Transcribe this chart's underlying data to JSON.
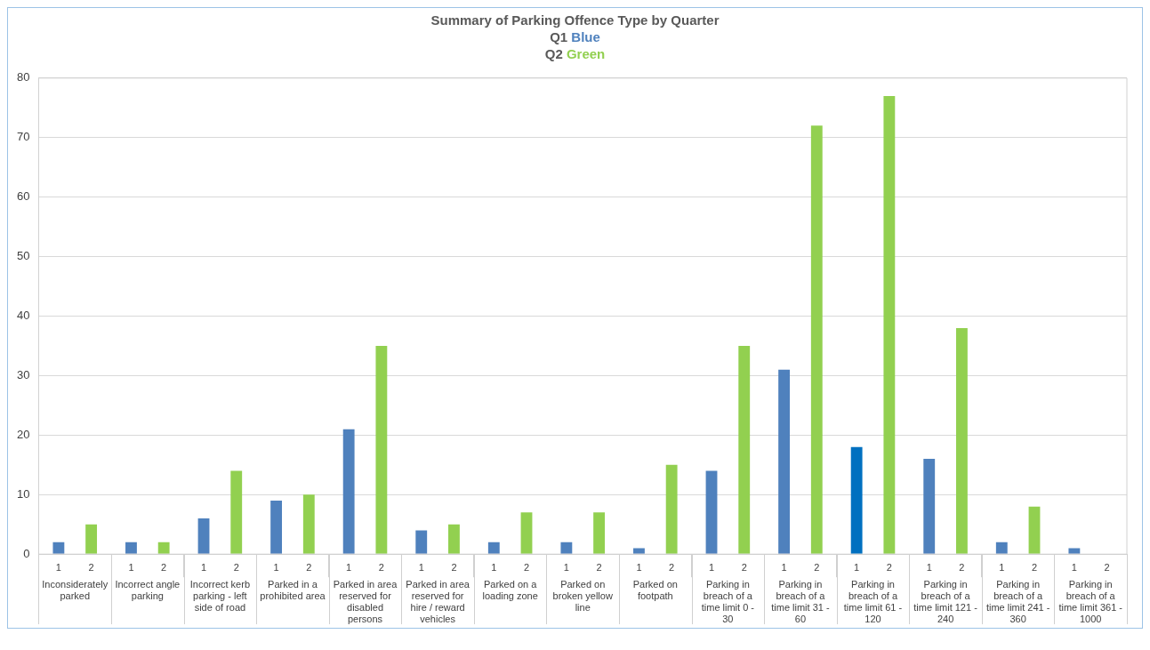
{
  "chart_data": {
    "type": "bar",
    "title": "Summary of Parking Offence Type by Quarter",
    "subtitle": "Q1 Blue\nQ2 Green",
    "categories": [
      "Inconsiderately parked",
      "Incorrect angle parking",
      "Incorrect kerb parking - left side of road",
      "Parked in a prohibited area",
      "Parked in area reserved for disabled persons",
      "Parked in area reserved for hire / reward vehicles",
      "Parked on a loading zone",
      "Parked on broken yellow line",
      "Parked on footpath",
      "Parking in breach of a time limit 0 - 30",
      "Parking in breach of a time limit 31 - 60",
      "Parking in breach of a time limit 61 - 120",
      "Parking in breach of a time limit 121 - 240",
      "Parking in breach of a time limit 241 - 360",
      "Parking in breach of a time limit 361 - 1000"
    ],
    "series": [
      {
        "name": "1",
        "color": "#4f81bd",
        "colors": [
          "#4f81bd",
          "#4f81bd",
          "#4f81bd",
          "#4f81bd",
          "#4f81bd",
          "#4f81bd",
          "#4f81bd",
          "#4f81bd",
          "#4f81bd",
          "#4f81bd",
          "#4f81bd",
          "#0070c0",
          "#4f81bd",
          "#4f81bd",
          "#4f81bd"
        ],
        "values": [
          2,
          2,
          6,
          9,
          21,
          4,
          2,
          2,
          1,
          14,
          31,
          18,
          16,
          2,
          1
        ]
      },
      {
        "name": "2",
        "color": "#92d050",
        "values": [
          5,
          2,
          14,
          10,
          35,
          5,
          7,
          7,
          15,
          35,
          72,
          77,
          38,
          8,
          0
        ]
      }
    ],
    "ylim": [
      0,
      80
    ],
    "yticks": [
      0,
      10,
      20,
      30,
      40,
      50,
      60,
      70,
      80
    ],
    "grid": "y",
    "legend": false
  }
}
